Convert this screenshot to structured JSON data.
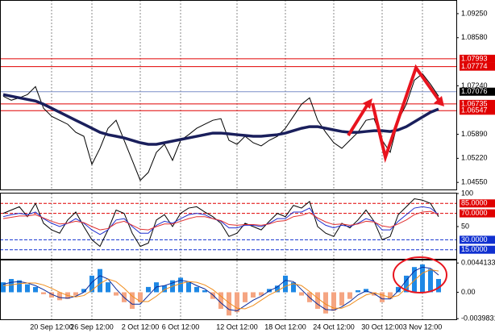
{
  "chart_data": [
    {
      "type": "line",
      "categories": [
        null,
        null,
        null,
        null,
        null,
        null,
        "20 Sep 12:00",
        null,
        null,
        null,
        null,
        "26 Sep 12:00",
        null,
        null,
        null,
        null,
        null,
        "2 Oct 12:00",
        null,
        null,
        null,
        null,
        "6 Oct 12:00",
        null,
        null,
        null,
        null,
        null,
        null,
        "12 Oct 12:00",
        null,
        null,
        null,
        null,
        null,
        "18 Oct 12:00",
        null,
        null,
        null,
        null,
        null,
        "24 Oct 12:00",
        null,
        null,
        null,
        null,
        null,
        "30 Oct 12:00",
        null,
        null,
        null,
        null,
        "3 Nov 12:00",
        null,
        null
      ],
      "series": [
        {
          "color": "#000000",
          "values": [
            1.0695,
            1.06839,
            1.06906,
            1.06995,
            1.07218,
            1.06615,
            1.06392,
            1.0628,
            1.06169,
            1.05945,
            1.05834,
            1.05052,
            1.05499,
            1.06057,
            1.0628,
            1.05722,
            1.05164,
            1.04606,
            1.04829,
            1.05387,
            1.05611,
            1.05164,
            1.05722,
            1.05878,
            1.06057,
            1.06169,
            1.0628,
            1.06325,
            1.05722,
            1.05611,
            1.05834,
            1.05655,
            1.05566,
            1.05722,
            1.05834,
            1.06057,
            1.06392,
            1.06727,
            1.06906,
            1.0628,
            1.05945,
            1.05655,
            1.05499,
            1.05722,
            1.05945,
            1.0628,
            1.06325,
            1.05722,
            1.05387,
            1.0628,
            1.06727,
            1.07397,
            1.07576,
            1.07285,
            1.0695
          ]
        },
        {
          "color": "#1a1f5c",
          "values": [
            1.06995,
            1.0695,
            1.06906,
            1.06861,
            1.06816,
            1.06727,
            1.06615,
            1.06504,
            1.06392,
            1.0628,
            1.06169,
            1.06057,
            1.05945,
            1.05878,
            1.05834,
            1.05789,
            1.05722,
            1.05655,
            1.05611,
            1.05611,
            1.05655,
            1.057,
            1.05745,
            1.05789,
            1.05834,
            1.05878,
            1.05923,
            1.05923,
            1.05901,
            1.05878,
            1.05856,
            1.05834,
            1.05834,
            1.05856,
            1.05878,
            1.05923,
            1.0599,
            1.06057,
            1.06102,
            1.06102,
            1.06057,
            1.06012,
            1.05968,
            1.05945,
            1.05945,
            1.05968,
            1.0599,
            1.0599,
            1.05968,
            1.06012,
            1.06102,
            1.06236,
            1.0637,
            1.06504,
            1.06593
          ]
        }
      ],
      "ylim": [
        1.0433,
        1.0963
      ],
      "yticks": [
        {
          "value": 1.0925,
          "label": "1.09250"
        },
        {
          "value": 1.0858,
          "label": "1.08580"
        },
        {
          "value": 1.0724,
          "label": "1.07240"
        },
        {
          "value": 1.0589,
          "label": "1.05890"
        },
        {
          "value": 1.0522,
          "label": "1.05220"
        },
        {
          "value": 1.0455,
          "label": "1.04550"
        }
      ],
      "levels": [
        {
          "value": 1.07993,
          "color": "#e00000"
        },
        {
          "value": 1.07774,
          "color": "#e00000"
        },
        {
          "value": 1.07076,
          "color": "#000000"
        },
        {
          "value": 1.06735,
          "color": "#e00000"
        },
        {
          "value": 1.06547,
          "color": "#e00000"
        }
      ],
      "grid": true
    },
    {
      "type": "line",
      "series": [
        {
          "color": "#000000",
          "values": [
            70,
            75,
            80,
            65,
            85,
            55,
            45,
            40,
            60,
            72,
            50,
            30,
            20,
            45,
            75,
            70,
            40,
            20,
            25,
            60,
            68,
            50,
            70,
            78,
            80,
            72,
            65,
            55,
            35,
            40,
            55,
            50,
            45,
            58,
            70,
            65,
            82,
            78,
            88,
            50,
            40,
            35,
            55,
            48,
            60,
            75,
            58,
            30,
            35,
            68,
            80,
            92,
            90,
            85,
            65
          ]
        },
        {
          "color": "#2030d0",
          "values": [
            65,
            68,
            70,
            68,
            72,
            62,
            55,
            50,
            55,
            62,
            55,
            45,
            38,
            45,
            60,
            62,
            50,
            40,
            40,
            52,
            58,
            55,
            62,
            68,
            70,
            68,
            62,
            58,
            48,
            48,
            52,
            52,
            50,
            55,
            62,
            62,
            72,
            72,
            78,
            60,
            52,
            48,
            52,
            50,
            55,
            62,
            58,
            45,
            45,
            58,
            68,
            78,
            80,
            78,
            68
          ]
        },
        {
          "color": "#e03030",
          "values": [
            62,
            64,
            66,
            66,
            68,
            63,
            58,
            54,
            55,
            58,
            56,
            50,
            45,
            47,
            55,
            58,
            52,
            46,
            45,
            50,
            54,
            54,
            58,
            62,
            65,
            65,
            62,
            59,
            53,
            52,
            53,
            53,
            52,
            54,
            58,
            59,
            65,
            67,
            71,
            63,
            57,
            53,
            54,
            52,
            54,
            58,
            57,
            51,
            49,
            54,
            60,
            68,
            72,
            73,
            68
          ]
        }
      ],
      "ylim": [
        0,
        100
      ],
      "yticks": [
        100,
        50
      ],
      "levels": [
        {
          "value": 85,
          "label": "85.0000",
          "color": "#e00000"
        },
        {
          "value": 70,
          "label": "70.0000",
          "color": "#e00000"
        },
        {
          "value": 30,
          "label": "30.0000",
          "color": "#1030d0"
        },
        {
          "value": 15,
          "label": "15.0000",
          "color": "#1030d0"
        }
      ]
    },
    {
      "type": "bar",
      "values": [
        0.0015,
        0.002,
        0.0018,
        0.0012,
        0.0008,
        -0.0003,
        -0.0008,
        -0.0012,
        -0.001,
        -0.0005,
        0.0005,
        0.0025,
        0.0035,
        0.0015,
        -0.0005,
        -0.0015,
        -0.0025,
        -0.0015,
        0.0008,
        0.0015,
        0.001,
        0.0018,
        0.0022,
        0.0015,
        0.0008,
        0.0003,
        -0.001,
        -0.0025,
        -0.0035,
        -0.003,
        -0.0015,
        -0.0008,
        -0.0005,
        0.0005,
        0.001,
        0.0025,
        0.0015,
        -0.0005,
        -0.0015,
        -0.0025,
        -0.0032,
        -0.0028,
        -0.002,
        -0.001,
        0.0003,
        0.0005,
        -0.0005,
        -0.0015,
        -0.001,
        0.0008,
        0.0025,
        0.0038,
        0.0042,
        0.0035,
        0.002
      ],
      "color": "#1e88e5",
      "negative_color": "#f5a582",
      "series": [
        {
          "color": "#0a2a9a",
          "values": [
            0.0012,
            0.0015,
            0.0016,
            0.0014,
            0.001,
            0.0004,
            -0.0003,
            -0.0008,
            -0.0009,
            -0.0006,
            0,
            0.0015,
            0.0025,
            0.002,
            0.0005,
            -0.0008,
            -0.0018,
            -0.0018,
            -0.0005,
            0.0008,
            0.001,
            0.0014,
            0.0018,
            0.0016,
            0.001,
            0.0005,
            -0.0004,
            -0.0016,
            -0.0026,
            -0.0028,
            -0.002,
            -0.0012,
            -0.0006,
            0.0002,
            0.0008,
            0.0018,
            0.0016,
            0.0004,
            -0.0008,
            -0.0018,
            -0.0026,
            -0.0027,
            -0.0022,
            -0.0014,
            -0.0004,
            0.0002,
            -0.0002,
            -0.001,
            -0.001,
            0.0002,
            0.0018,
            0.0032,
            0.0038,
            0.0036,
            0.0026
          ]
        },
        {
          "color": "#f08c1a",
          "values": [
            0.001,
            0.0011,
            0.0013,
            0.0014,
            0.0014,
            0.0011,
            0.0006,
            0,
            -0.0005,
            -0.0007,
            -0.0005,
            0.0003,
            0.0013,
            0.002,
            0.0016,
            0.0006,
            -0.0006,
            -0.0014,
            -0.0014,
            -0.0006,
            0.0004,
            0.0009,
            0.0013,
            0.0016,
            0.0015,
            0.0011,
            0.0004,
            -0.0006,
            -0.0016,
            -0.0024,
            -0.0025,
            -0.002,
            -0.0012,
            -0.0004,
            0.0002,
            0.0009,
            0.0013,
            0.001,
            0.0001,
            -0.0009,
            -0.0018,
            -0.0024,
            -0.0024,
            -0.0019,
            -0.0011,
            -0.0004,
            -0.0001,
            -0.0004,
            -0.0008,
            -0.0005,
            0.0006,
            0.0018,
            0.0029,
            0.0034,
            0.0032
          ]
        }
      ],
      "ylim": [
        -0.0042,
        0.0048
      ],
      "yticks": [
        0.0044133,
        {
          "value": 0,
          "label": "0.00"
        },
        -0.0039831
      ]
    }
  ]
}
